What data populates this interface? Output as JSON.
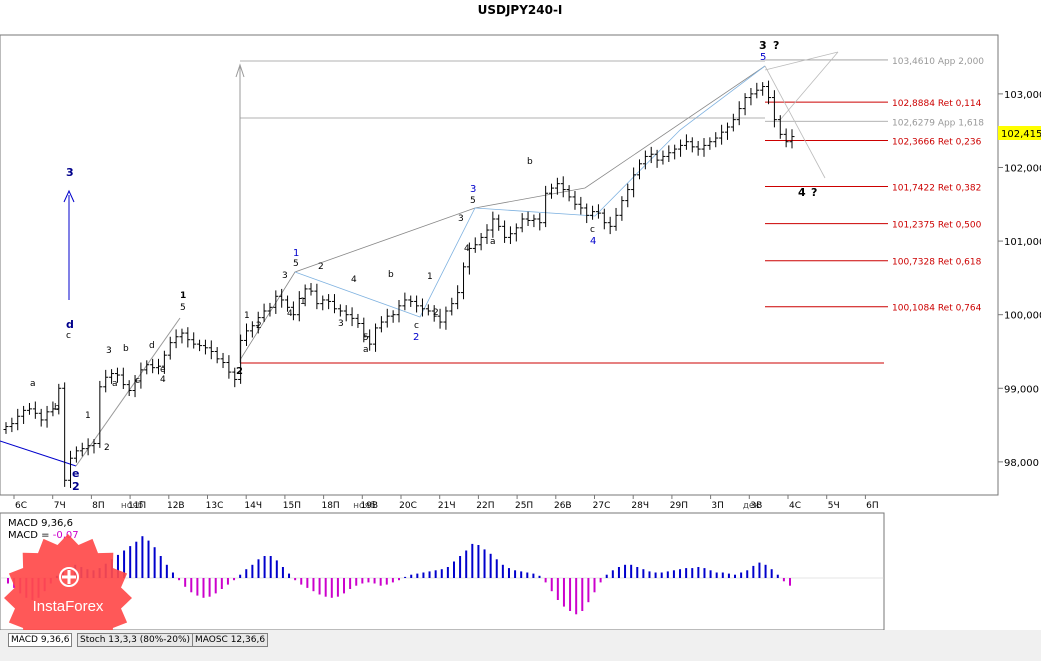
{
  "colors": {
    "bars": "#000000",
    "wave_blue": "#00008b",
    "fib_red": "#cc0000",
    "fib_gray": "#999999",
    "macd_pos": "#0000cc",
    "macd_neg": "#cc00cc",
    "price_marker_bg": "#ffff00",
    "logo": "#ff4a4a"
  },
  "chart_data": [
    {
      "type": "candlestick",
      "title": "USDJPY240-I",
      "yticks": [
        "103,000",
        "102,000",
        "101,000",
        "100,000",
        "99,000",
        "98,000"
      ],
      "current_price": "102,415",
      "xticks": [
        "6С",
        "7Ч",
        "8П",
        "11П",
        "12В",
        "13С",
        "14Ч",
        "15П",
        "18П",
        "19В",
        "20С",
        "21Ч",
        "22П",
        "25П",
        "26В",
        "27С",
        "28Ч",
        "29П",
        "3П",
        "3В",
        "4С",
        "5Ч",
        "6П"
      ],
      "xticks_overlap": [
        "нояб",
        "нояб",
        "дек"
      ],
      "price_axis": {
        "y_min": 97.55,
        "y_max": 103.8
      },
      "closes": [
        98.48,
        98.52,
        98.62,
        98.7,
        98.72,
        98.66,
        98.57,
        98.68,
        98.72,
        99.0,
        97.75,
        98.05,
        98.15,
        98.18,
        98.22,
        98.25,
        99.02,
        99.15,
        99.2,
        99.18,
        99.05,
        98.97,
        99.1,
        99.25,
        99.32,
        99.28,
        99.3,
        99.45,
        99.62,
        99.7,
        99.75,
        99.66,
        99.6,
        99.58,
        99.55,
        99.5,
        99.4,
        99.35,
        99.22,
        99.12,
        99.65,
        99.78,
        99.85,
        99.96,
        100.05,
        100.1,
        100.25,
        100.2,
        100.1,
        100.0,
        100.22,
        100.35,
        100.32,
        100.15,
        100.2,
        100.18,
        100.08,
        100.05,
        100.0,
        99.95,
        99.88,
        99.7,
        99.6,
        99.82,
        99.9,
        99.98,
        100.0,
        100.12,
        100.2,
        100.18,
        100.12,
        100.08,
        100.05,
        99.98,
        99.9,
        100.05,
        100.15,
        100.3,
        100.65,
        100.9,
        100.95,
        101.05,
        101.15,
        101.3,
        101.2,
        101.05,
        101.1,
        101.18,
        101.3,
        101.28,
        101.3,
        101.25,
        101.65,
        101.72,
        101.78,
        101.7,
        101.6,
        101.5,
        101.45,
        101.35,
        101.4,
        101.38,
        101.25,
        101.2,
        101.35,
        101.55,
        101.7,
        101.9,
        102.05,
        102.15,
        102.18,
        102.1,
        102.15,
        102.2,
        102.25,
        102.3,
        102.35,
        102.28,
        102.25,
        102.3,
        102.35,
        102.4,
        102.48,
        102.55,
        102.65,
        102.8,
        102.95,
        103.0,
        103.05,
        103.1,
        102.95,
        102.65,
        102.45,
        102.35,
        102.42
      ],
      "wave_labels": [
        "a",
        "b",
        "c",
        "d",
        "e",
        "1",
        "2",
        "3",
        "4",
        "5",
        "?"
      ],
      "fib_levels": [
        {
          "price": "103,4610",
          "label": "App 2,000",
          "kind": "app"
        },
        {
          "price": "102,8884",
          "label": "Ret 0,114",
          "kind": "ret"
        },
        {
          "price": "102,6279",
          "label": "App 1,618",
          "kind": "app"
        },
        {
          "price": "102,3666",
          "label": "Ret 0,236",
          "kind": "ret"
        },
        {
          "price": "101,7422",
          "label": "Ret 0,382",
          "kind": "ret"
        },
        {
          "price": "101,2375",
          "label": "Ret 0,500",
          "kind": "ret"
        },
        {
          "price": "100,7328",
          "label": "Ret 0,618",
          "kind": "ret"
        },
        {
          "price": "100,1084",
          "label": "Ret 0,764",
          "kind": "ret"
        }
      ]
    },
    {
      "type": "bar",
      "title": "MACD 9,36,6",
      "subtitle_prefix": "MACD = ",
      "value": "-0,07",
      "values": [
        -0.05,
        -0.09,
        -0.14,
        -0.18,
        -0.2,
        -0.18,
        -0.12,
        -0.05,
        0.02,
        0.06,
        0.1,
        0.12,
        0.1,
        0.08,
        0.07,
        0.09,
        0.13,
        0.17,
        0.21,
        0.25,
        0.29,
        0.33,
        0.38,
        0.34,
        0.28,
        0.2,
        0.12,
        0.05,
        -0.02,
        -0.08,
        -0.13,
        -0.16,
        -0.18,
        -0.17,
        -0.14,
        -0.1,
        -0.06,
        -0.02,
        0.03,
        0.08,
        0.12,
        0.17,
        0.2,
        0.2,
        0.16,
        0.1,
        0.04,
        -0.02,
        -0.06,
        -0.09,
        -0.12,
        -0.15,
        -0.17,
        -0.18,
        -0.17,
        -0.14,
        -0.1,
        -0.07,
        -0.05,
        -0.04,
        -0.05,
        -0.07,
        -0.06,
        -0.04,
        -0.02,
        0.01,
        0.03,
        0.04,
        0.05,
        0.06,
        0.07,
        0.08,
        0.1,
        0.15,
        0.2,
        0.25,
        0.31,
        0.3,
        0.26,
        0.22,
        0.17,
        0.12,
        0.09,
        0.07,
        0.06,
        0.05,
        0.04,
        0.02,
        -0.04,
        -0.12,
        -0.2,
        -0.26,
        -0.3,
        -0.33,
        -0.3,
        -0.22,
        -0.13,
        -0.04,
        0.03,
        0.07,
        0.1,
        0.12,
        0.12,
        0.1,
        0.08,
        0.06,
        0.05,
        0.05,
        0.06,
        0.07,
        0.08,
        0.09,
        0.09,
        0.1,
        0.09,
        0.07,
        0.05,
        0.05,
        0.04,
        0.03,
        0.05,
        0.07,
        0.11,
        0.14,
        0.12,
        0.08,
        0.03,
        -0.03,
        -0.07
      ]
    }
  ],
  "tabs": [
    "MACD 9,36,6",
    "Stoch 13,3,3 (80%-20%)",
    "MAOSC 12,36,6"
  ],
  "logo": {
    "text": "InstaForex"
  }
}
